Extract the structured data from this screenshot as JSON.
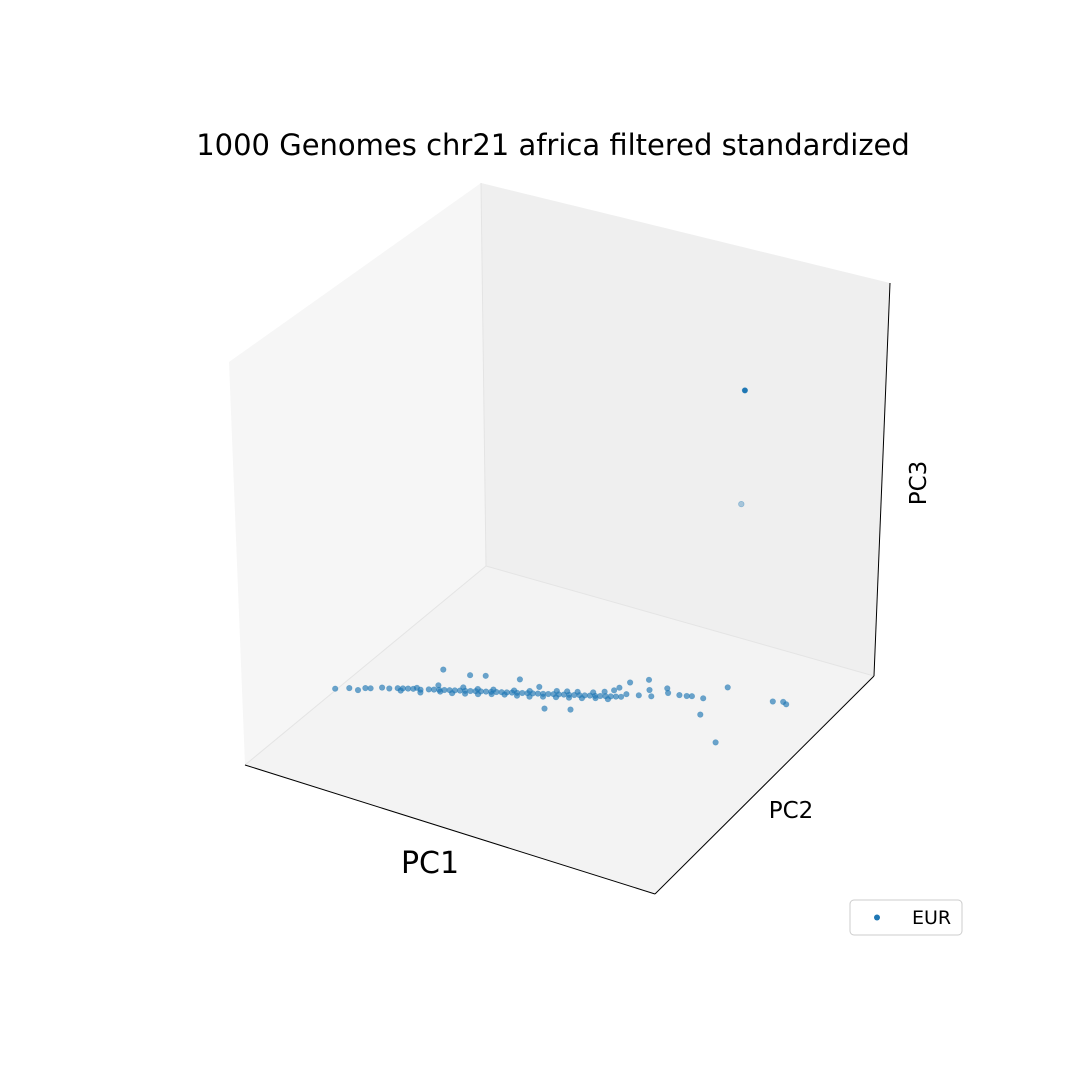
{
  "chart_data": {
    "type": "scatter",
    "projection": "3d",
    "title": "1000 Genomes chr21 africa filtered standardized",
    "xlabel": "PC1",
    "ylabel": "PC2",
    "zlabel": "PC3",
    "grid": false,
    "ticks": false,
    "legend_position": "bottom-right",
    "series": [
      {
        "name": "EUR",
        "color": "#1f77b4",
        "points": [
          [
            -0.95,
            -0.27,
            0
          ],
          [
            -0.9,
            -0.235,
            0
          ],
          [
            -0.86,
            -0.23,
            0
          ],
          [
            -0.84,
            -0.2,
            0
          ],
          [
            -0.82,
            -0.19,
            0
          ],
          [
            -0.78,
            -0.16,
            0
          ],
          [
            -0.75,
            -0.15,
            0
          ],
          [
            -0.72,
            -0.13,
            0
          ],
          [
            -0.7,
            -0.12,
            0
          ],
          [
            -0.68,
            -0.11,
            0
          ],
          [
            -0.66,
            -0.1,
            0
          ],
          [
            -0.63,
            -0.09,
            0
          ],
          [
            -0.6,
            -0.07,
            0
          ],
          [
            -0.58,
            -0.06,
            0
          ],
          [
            -0.56,
            -0.05,
            0
          ],
          [
            -0.54,
            -0.04,
            0
          ],
          [
            -0.52,
            -0.03,
            0
          ],
          [
            -0.5,
            -0.02,
            0
          ],
          [
            -0.48,
            -0.01,
            0
          ],
          [
            -0.46,
            0.0,
            0
          ],
          [
            -0.44,
            0.01,
            0
          ],
          [
            -0.42,
            0.02,
            0
          ],
          [
            -0.4,
            0.03,
            0
          ],
          [
            -0.38,
            0.04,
            0
          ],
          [
            -0.36,
            0.05,
            0
          ],
          [
            -0.34,
            0.06,
            0
          ],
          [
            -0.32,
            0.07,
            0
          ],
          [
            -0.3,
            0.08,
            0
          ],
          [
            -0.28,
            0.09,
            0
          ],
          [
            -0.26,
            0.1,
            0
          ],
          [
            -0.24,
            0.11,
            0
          ],
          [
            -0.22,
            0.12,
            0
          ],
          [
            -0.2,
            0.13,
            0
          ],
          [
            -0.18,
            0.14,
            0
          ],
          [
            -0.16,
            0.15,
            0
          ],
          [
            -0.14,
            0.16,
            0
          ],
          [
            -0.12,
            0.17,
            0
          ],
          [
            -0.1,
            0.18,
            0
          ],
          [
            -0.08,
            0.19,
            0
          ],
          [
            -0.06,
            0.2,
            0
          ],
          [
            -0.04,
            0.21,
            0
          ],
          [
            -0.02,
            0.22,
            0
          ],
          [
            0.0,
            0.23,
            0
          ],
          [
            0.02,
            0.24,
            0
          ],
          [
            0.04,
            0.25,
            0
          ],
          [
            0.06,
            0.26,
            0
          ],
          [
            0.08,
            0.27,
            0
          ],
          [
            0.1,
            0.28,
            0
          ],
          [
            0.12,
            0.29,
            0
          ],
          [
            0.14,
            0.3,
            0
          ],
          [
            -0.7,
            -0.14,
            0
          ],
          [
            -0.65,
            -0.085,
            0
          ],
          [
            -0.62,
            -0.11,
            0
          ],
          [
            -0.55,
            -0.06,
            0
          ],
          [
            -0.5,
            -0.045,
            0
          ],
          [
            -0.45,
            -0.02,
            0
          ],
          [
            -0.4,
            0.005,
            0
          ],
          [
            -0.35,
            0.035,
            0
          ],
          [
            -0.3,
            0.06,
            0
          ],
          [
            -0.25,
            0.08,
            0
          ],
          [
            -0.2,
            0.1,
            0
          ],
          [
            -0.15,
            0.13,
            0
          ],
          [
            -0.1,
            0.155,
            0
          ],
          [
            -0.05,
            0.18,
            0
          ],
          [
            0.0,
            0.205,
            0
          ],
          [
            0.05,
            0.235,
            0
          ],
          [
            0.1,
            0.255,
            0
          ],
          [
            -0.58,
            -0.02,
            0
          ],
          [
            -0.48,
            0.02,
            0
          ],
          [
            -0.42,
            0.04,
            0
          ],
          [
            -0.36,
            0.07,
            0
          ],
          [
            -0.28,
            0.11,
            0
          ],
          [
            -0.22,
            0.14,
            0
          ],
          [
            -0.12,
            0.2,
            0
          ],
          [
            -0.08,
            0.22,
            0
          ],
          [
            0.02,
            0.27,
            0
          ],
          [
            -0.62,
            0.1,
            0
          ],
          [
            -0.5,
            0.12,
            0
          ],
          [
            -0.44,
            0.15,
            0
          ],
          [
            -0.3,
            0.2,
            0
          ],
          [
            -0.2,
            0.19,
            0
          ],
          [
            0.15,
            0.33,
            0
          ],
          [
            0.2,
            0.35,
            0
          ],
          [
            0.12,
            0.42,
            0
          ],
          [
            0.1,
            0.36,
            0
          ],
          [
            0.22,
            0.41,
            0
          ],
          [
            0.3,
            0.43,
            0
          ],
          [
            0.18,
            0.48,
            0
          ],
          [
            0.28,
            0.46,
            0
          ],
          [
            0.35,
            0.44,
            0
          ],
          [
            0.38,
            0.45,
            0
          ],
          [
            0.4,
            0.46,
            0
          ],
          [
            0.45,
            0.47,
            0
          ],
          [
            0.5,
            0.6,
            0
          ],
          [
            0.72,
            0.6,
            0
          ],
          [
            0.76,
            0.62,
            0
          ],
          [
            0.78,
            0.61,
            0
          ],
          [
            0.5,
            0.35,
            0
          ],
          [
            0.66,
            0.19,
            0
          ],
          [
            -0.04,
            0.24,
            0
          ],
          [
            0.0,
            0.1,
            0
          ],
          [
            -0.1,
            0.05,
            0
          ],
          [
            0.06,
            0.3,
            0
          ],
          [
            0.09,
            0.33,
            0
          ],
          [
            0.25,
            0.37,
            0
          ],
          [
            0.55,
            0.55,
            1.4
          ],
          [
            0.57,
            0.52,
            0.9
          ]
        ]
      }
    ]
  }
}
